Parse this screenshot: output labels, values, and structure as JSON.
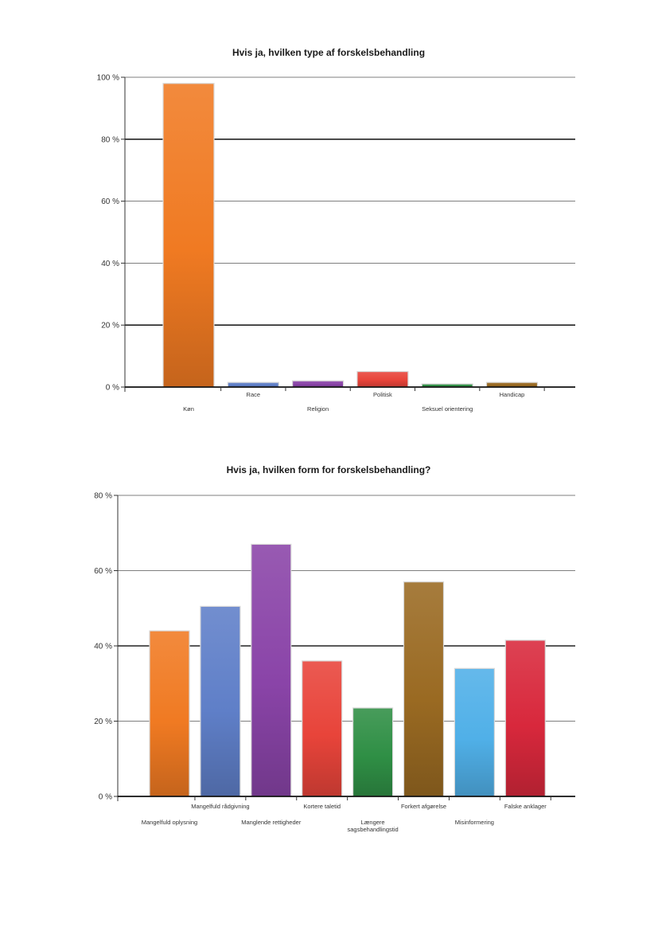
{
  "chart_data": [
    {
      "type": "bar",
      "title": "Hvis ja, hvilken type af forskelsbehandling",
      "xlabel": "",
      "ylabel": "",
      "ylim": [
        0,
        100
      ],
      "yticks": [
        0,
        20,
        40,
        60,
        80,
        100
      ],
      "ytick_labels": [
        "0 %",
        "20 %",
        "40 %",
        "60 %",
        "80 %",
        "100 %"
      ],
      "grid": true,
      "categories": [
        "Køn",
        "Race",
        "Religion",
        "Politisk",
        "Seksuel orientering",
        "Handicap"
      ],
      "values": [
        98,
        1.5,
        2,
        5,
        1,
        1.5
      ],
      "colors": [
        "#f07a22",
        "#5f7fc8",
        "#8a44a8",
        "#e8443a",
        "#2f8f45",
        "#9a6a22"
      ]
    },
    {
      "type": "bar",
      "title": "Hvis ja, hvilken form for forskelsbehandling?",
      "xlabel": "",
      "ylabel": "",
      "ylim": [
        0,
        80
      ],
      "yticks": [
        0,
        20,
        40,
        60,
        80
      ],
      "ytick_labels": [
        "0 %",
        "20 %",
        "40 %",
        "60 %",
        "80 %"
      ],
      "grid": true,
      "categories": [
        "Mangelfuld oplysning",
        "Mangelfuld rådgivning",
        "Manglende rettigheder",
        "Kortere taletid",
        "Længere sagsbehandlingstid",
        "Forkert afgørelse",
        "Misinformering",
        "Falske anklager"
      ],
      "category_lines": [
        [
          "Mangelfuld oplysning"
        ],
        [
          "Mangelfuld rådgivning"
        ],
        [
          "Manglende rettigheder"
        ],
        [
          "Kortere taletid"
        ],
        [
          "Længere",
          "sagsbehandlingstid"
        ],
        [
          "Forkert afgørelse"
        ],
        [
          "Misinformering"
        ],
        [
          "Falske anklager"
        ]
      ],
      "values": [
        44,
        50.5,
        67,
        36,
        23.5,
        57,
        34,
        41.5
      ],
      "colors": [
        "#f07a22",
        "#5f7fc8",
        "#8a44a8",
        "#e8443a",
        "#2f8f45",
        "#9a6a22",
        "#50b0e8",
        "#d8283c"
      ]
    }
  ]
}
